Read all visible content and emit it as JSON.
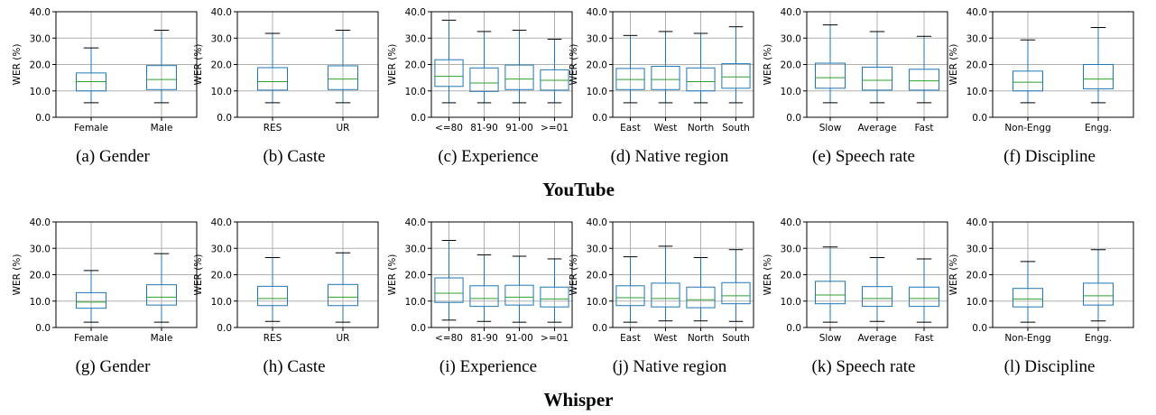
{
  "group_titles": [
    "YouTube",
    "Whisper"
  ],
  "colors": {
    "box": "#1f77b4",
    "median": "#2ca02c",
    "grid": "#b0b0b0",
    "cap": "#000000"
  },
  "chart_data": [
    {
      "type": "box",
      "caption": "(a) Gender",
      "ylabel": "WER (%)",
      "ylim": [
        0,
        40
      ],
      "yticks": [
        "0.0",
        "10.0",
        "20.0",
        "30.0",
        "40.0"
      ],
      "grid": true,
      "categories": [
        "Female",
        "Male"
      ],
      "boxes": [
        {
          "whislo": 5.5,
          "q1": 10.0,
          "med": 13.5,
          "q3": 16.8,
          "whishi": 26.3
        },
        {
          "whislo": 5.5,
          "q1": 10.5,
          "med": 14.3,
          "q3": 19.6,
          "whishi": 33.0
        }
      ]
    },
    {
      "type": "box",
      "caption": "(b) Caste",
      "ylabel": "WER (%)",
      "ylim": [
        0,
        40
      ],
      "yticks": [
        "0.0",
        "10.0",
        "20.0",
        "30.0",
        "40.0"
      ],
      "grid": true,
      "categories": [
        "RES",
        "UR"
      ],
      "boxes": [
        {
          "whislo": 5.5,
          "q1": 10.3,
          "med": 13.5,
          "q3": 18.8,
          "whishi": 31.8
        },
        {
          "whislo": 5.5,
          "q1": 10.5,
          "med": 14.5,
          "q3": 19.5,
          "whishi": 33.0
        }
      ]
    },
    {
      "type": "box",
      "caption": "(c) Experience",
      "ylabel": "WER (%)",
      "ylim": [
        0,
        40
      ],
      "yticks": [
        "0.0",
        "10.0",
        "20.0",
        "30.0",
        "40.0"
      ],
      "grid": true,
      "categories": [
        "<=80",
        "81-90",
        "91-00",
        ">=01"
      ],
      "boxes": [
        {
          "whislo": 5.5,
          "q1": 11.7,
          "med": 15.5,
          "q3": 21.8,
          "whishi": 36.8
        },
        {
          "whislo": 5.5,
          "q1": 9.8,
          "med": 13.0,
          "q3": 18.7,
          "whishi": 32.5
        },
        {
          "whislo": 5.5,
          "q1": 10.5,
          "med": 14.5,
          "q3": 19.8,
          "whishi": 33.0
        },
        {
          "whislo": 5.5,
          "q1": 10.3,
          "med": 14.0,
          "q3": 18.0,
          "whishi": 29.6
        }
      ]
    },
    {
      "type": "box",
      "caption": "(d) Native region",
      "ylabel": "WER (%)",
      "ylim": [
        0,
        40
      ],
      "yticks": [
        "0.0",
        "10.0",
        "20.0",
        "30.0",
        "40.0"
      ],
      "grid": true,
      "categories": [
        "East",
        "West",
        "North",
        "South"
      ],
      "boxes": [
        {
          "whislo": 5.5,
          "q1": 10.5,
          "med": 14.3,
          "q3": 18.5,
          "whishi": 31.0
        },
        {
          "whislo": 5.5,
          "q1": 10.5,
          "med": 14.3,
          "q3": 19.3,
          "whishi": 32.5
        },
        {
          "whislo": 5.5,
          "q1": 10.0,
          "med": 13.5,
          "q3": 18.7,
          "whishi": 31.8
        },
        {
          "whislo": 5.5,
          "q1": 11.0,
          "med": 15.3,
          "q3": 20.3,
          "whishi": 34.3
        }
      ]
    },
    {
      "type": "box",
      "caption": "(e) Speech rate",
      "ylabel": "WER (%)",
      "ylim": [
        0,
        40
      ],
      "yticks": [
        "0.0",
        "10.0",
        "20.0",
        "30.0",
        "40.0"
      ],
      "grid": true,
      "categories": [
        "Slow",
        "Average",
        "Fast"
      ],
      "boxes": [
        {
          "whislo": 5.5,
          "q1": 11.0,
          "med": 15.0,
          "q3": 20.5,
          "whishi": 35.0
        },
        {
          "whislo": 5.5,
          "q1": 10.3,
          "med": 14.0,
          "q3": 19.0,
          "whishi": 32.5
        },
        {
          "whislo": 5.5,
          "q1": 10.3,
          "med": 13.8,
          "q3": 18.2,
          "whishi": 30.7
        }
      ]
    },
    {
      "type": "box",
      "caption": "(f) Discipline",
      "ylabel": "WER (%)",
      "ylim": [
        0,
        40
      ],
      "yticks": [
        "0.0",
        "10.0",
        "20.0",
        "30.0",
        "40.0"
      ],
      "grid": true,
      "categories": [
        "Non-Engg",
        "Engg."
      ],
      "boxes": [
        {
          "whislo": 5.5,
          "q1": 10.0,
          "med": 13.3,
          "q3": 17.5,
          "whishi": 29.3
        },
        {
          "whislo": 5.5,
          "q1": 10.8,
          "med": 14.5,
          "q3": 20.0,
          "whishi": 34.0
        }
      ]
    },
    {
      "type": "box",
      "caption": "(g) Gender",
      "ylabel": "WER (%)",
      "ylim": [
        0,
        40
      ],
      "yticks": [
        "0.0",
        "10.0",
        "20.0",
        "30.0",
        "40.0"
      ],
      "grid": true,
      "categories": [
        "Female",
        "Male"
      ],
      "boxes": [
        {
          "whislo": 2.0,
          "q1": 7.3,
          "med": 9.6,
          "q3": 13.2,
          "whishi": 21.6
        },
        {
          "whislo": 2.0,
          "q1": 8.5,
          "med": 11.5,
          "q3": 16.2,
          "whishi": 28.0
        }
      ]
    },
    {
      "type": "box",
      "caption": "(h) Caste",
      "ylabel": "WER (%)",
      "ylim": [
        0,
        40
      ],
      "yticks": [
        "0.0",
        "10.0",
        "20.0",
        "30.0",
        "40.0"
      ],
      "grid": true,
      "categories": [
        "RES",
        "UR"
      ],
      "boxes": [
        {
          "whislo": 2.3,
          "q1": 8.3,
          "med": 11.0,
          "q3": 15.6,
          "whishi": 26.5
        },
        {
          "whislo": 2.0,
          "q1": 8.3,
          "med": 11.5,
          "q3": 16.3,
          "whishi": 28.3
        }
      ]
    },
    {
      "type": "box",
      "caption": "(i) Experience",
      "ylabel": "WER (%)",
      "ylim": [
        0,
        40
      ],
      "yticks": [
        "0.0",
        "10.0",
        "20.0",
        "30.0",
        "40.0"
      ],
      "grid": true,
      "categories": [
        "<=80",
        "81-90",
        "91-00",
        ">=01"
      ],
      "boxes": [
        {
          "whislo": 2.8,
          "q1": 9.5,
          "med": 13.0,
          "q3": 18.8,
          "whishi": 33.0
        },
        {
          "whislo": 2.3,
          "q1": 8.0,
          "med": 11.0,
          "q3": 15.8,
          "whishi": 27.5
        },
        {
          "whislo": 2.0,
          "q1": 8.5,
          "med": 11.5,
          "q3": 16.0,
          "whishi": 27.0
        },
        {
          "whislo": 2.0,
          "q1": 7.8,
          "med": 10.8,
          "q3": 15.3,
          "whishi": 26.0
        }
      ]
    },
    {
      "type": "box",
      "caption": "(j) Native region",
      "ylabel": "WER (%)",
      "ylim": [
        0,
        40
      ],
      "yticks": [
        "0.0",
        "10.0",
        "20.0",
        "30.0",
        "40.0"
      ],
      "grid": true,
      "categories": [
        "East",
        "West",
        "North",
        "South"
      ],
      "boxes": [
        {
          "whislo": 2.0,
          "q1": 8.3,
          "med": 11.3,
          "q3": 15.8,
          "whishi": 26.8
        },
        {
          "whislo": 2.5,
          "q1": 7.8,
          "med": 11.0,
          "q3": 16.8,
          "whishi": 30.8
        },
        {
          "whislo": 2.5,
          "q1": 7.5,
          "med": 10.5,
          "q3": 15.3,
          "whishi": 26.5
        },
        {
          "whislo": 2.3,
          "q1": 9.0,
          "med": 12.0,
          "q3": 17.0,
          "whishi": 29.5
        }
      ]
    },
    {
      "type": "box",
      "caption": "(k) Speech rate",
      "ylabel": "WER (%)",
      "ylim": [
        0,
        40
      ],
      "yticks": [
        "0.0",
        "10.0",
        "20.0",
        "30.0",
        "40.0"
      ],
      "grid": true,
      "categories": [
        "Slow",
        "Average",
        "Fast"
      ],
      "boxes": [
        {
          "whislo": 2.0,
          "q1": 9.0,
          "med": 12.3,
          "q3": 17.5,
          "whishi": 30.5
        },
        {
          "whislo": 2.3,
          "q1": 8.0,
          "med": 11.0,
          "q3": 15.5,
          "whishi": 26.5
        },
        {
          "whislo": 2.0,
          "q1": 8.0,
          "med": 11.0,
          "q3": 15.3,
          "whishi": 26.0
        }
      ]
    },
    {
      "type": "box",
      "caption": "(l) Discipline",
      "ylabel": "WER (%)",
      "ylim": [
        0,
        40
      ],
      "yticks": [
        "0.0",
        "10.0",
        "20.0",
        "30.0",
        "40.0"
      ],
      "grid": true,
      "categories": [
        "Non-Engg",
        "Engg."
      ],
      "boxes": [
        {
          "whislo": 2.0,
          "q1": 7.8,
          "med": 10.8,
          "q3": 14.8,
          "whishi": 25.0
        },
        {
          "whislo": 2.5,
          "q1": 8.5,
          "med": 12.0,
          "q3": 16.8,
          "whishi": 29.5
        }
      ]
    }
  ]
}
